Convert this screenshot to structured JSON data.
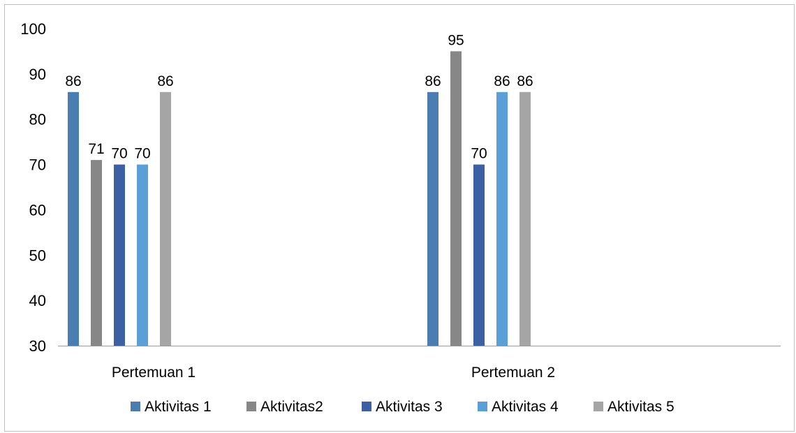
{
  "chart_data": {
    "type": "bar",
    "categories": [
      "Pertemuan 1",
      "Pertemuan 2"
    ],
    "series": [
      {
        "name": "Aktivitas 1",
        "values": [
          86,
          86
        ],
        "color": "#4a7eb0"
      },
      {
        "name": "Aktivitas2",
        "values": [
          71,
          95
        ],
        "color": "#878787"
      },
      {
        "name": "Aktivitas 3",
        "values": [
          70,
          70
        ],
        "color": "#3d5fa3"
      },
      {
        "name": "Aktivitas 4",
        "values": [
          70,
          86
        ],
        "color": "#5b9fd8"
      },
      {
        "name": "Aktivitas 5",
        "values": [
          86,
          86
        ],
        "color": "#a5a5a5"
      }
    ],
    "yticks": [
      30,
      40,
      50,
      60,
      70,
      80,
      90,
      100
    ],
    "ylim": [
      30,
      100
    ],
    "data_labels": true,
    "grid": false,
    "legend": "bottom",
    "title": "",
    "xlabel": "",
    "ylabel": ""
  }
}
